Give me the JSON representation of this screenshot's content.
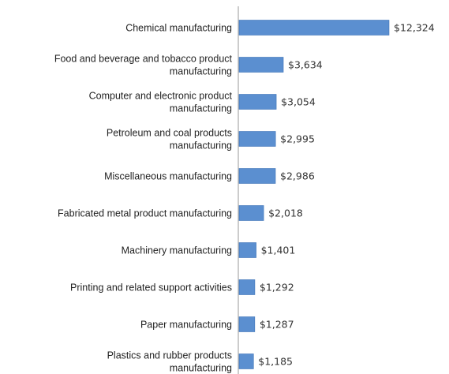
{
  "chart_data": {
    "type": "bar",
    "orientation": "horizontal",
    "categories": [
      [
        "Chemical manufacturing"
      ],
      [
        "Food and beverage and tobacco product",
        "manufacturing"
      ],
      [
        "Computer and electronic product",
        "manufacturing"
      ],
      [
        "Petroleum and coal products",
        "manufacturing"
      ],
      [
        "Miscellaneous manufacturing"
      ],
      [
        "Fabricated metal product manufacturing"
      ],
      [
        "Machinery manufacturing"
      ],
      [
        "Printing and related support activities"
      ],
      [
        "Paper manufacturing"
      ],
      [
        "Plastics and rubber products",
        "manufacturing"
      ]
    ],
    "values": [
      12324,
      3634,
      3054,
      2995,
      2986,
      2018,
      1401,
      1292,
      1287,
      1185
    ],
    "value_labels": [
      "$12,324",
      "$3,634",
      "$3,054",
      "$2,995",
      "$2,986",
      "$2,018",
      "$1,401",
      "$1,292",
      "$1,287",
      "$1,185"
    ],
    "xlim": [
      0,
      12324
    ],
    "grid": false,
    "title": "",
    "xlabel": "",
    "ylabel": "",
    "colors": {
      "bar": "#5b8fd0",
      "bar_edge": "#3f74b8",
      "axis": "#999999"
    }
  }
}
